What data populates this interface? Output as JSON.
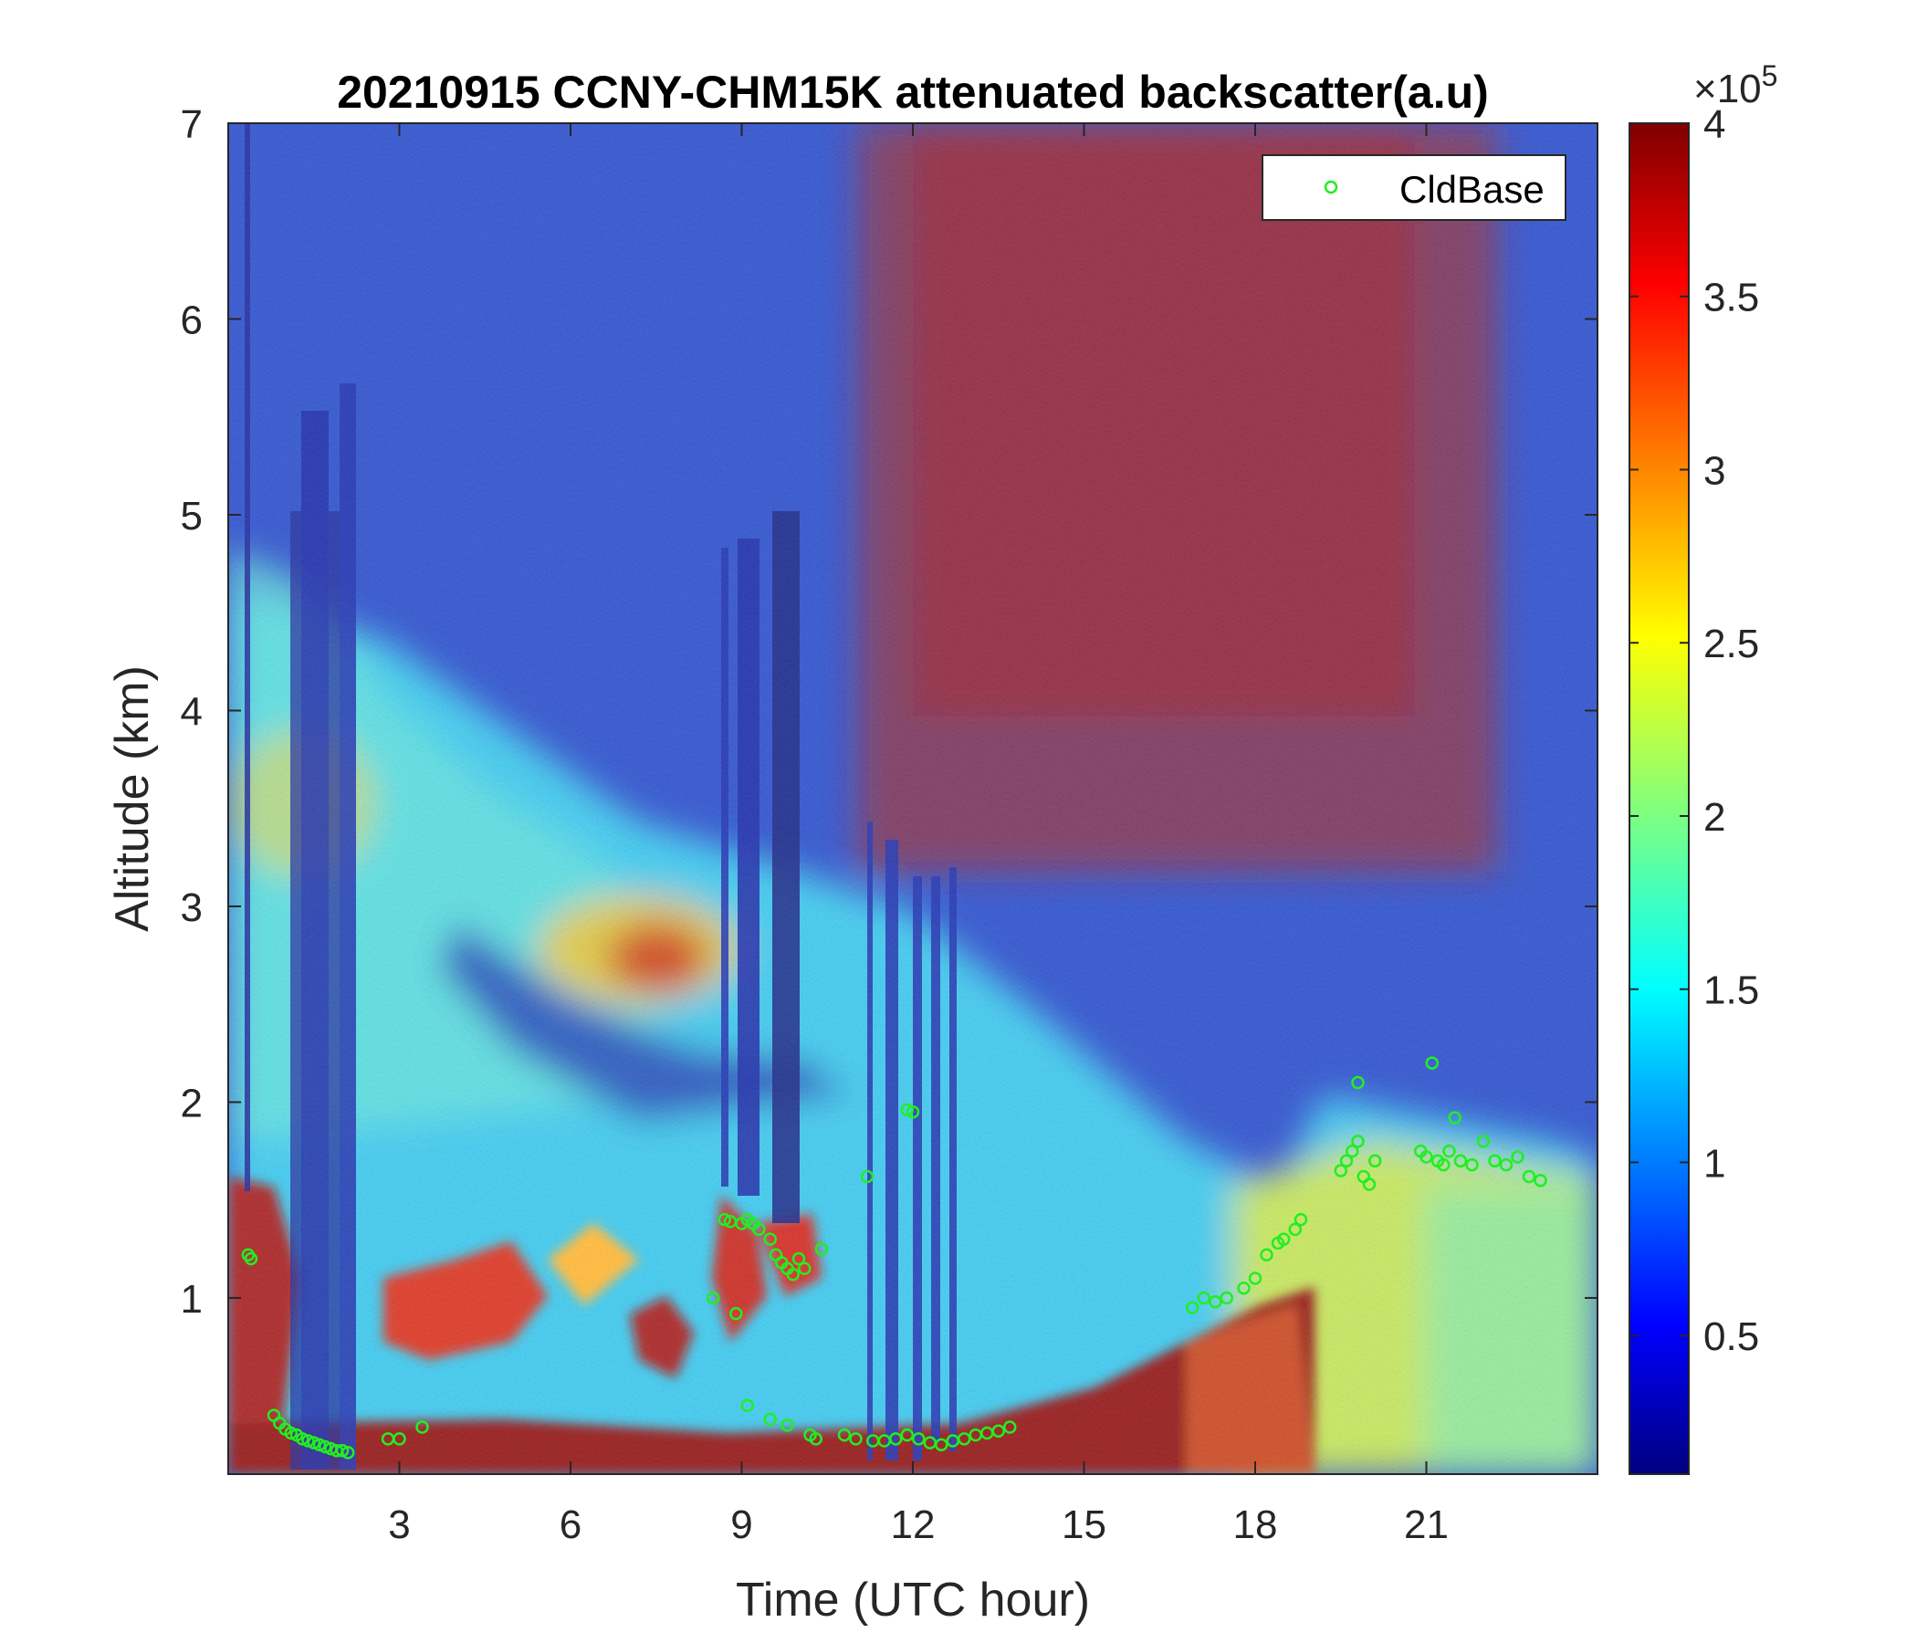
{
  "chart_data": {
    "type": "heatmap",
    "title": "20210915 CCNY-CHM15K attenuated backscatter(a.u)",
    "xlabel": "Time (UTC hour)",
    "ylabel": "Altitude (km)",
    "xlim": [
      0,
      24
    ],
    "ylim": [
      0.1,
      7
    ],
    "x_ticks": [
      "3",
      "6",
      "9",
      "12",
      "15",
      "18",
      "21"
    ],
    "x_tick_values": [
      3,
      6,
      9,
      12,
      15,
      18,
      21
    ],
    "y_ticks": [
      "1",
      "2",
      "3",
      "4",
      "5",
      "6",
      "7"
    ],
    "y_tick_values": [
      1,
      2,
      3,
      4,
      5,
      6,
      7
    ],
    "colorbar": {
      "colormap": "jet",
      "range": [
        0.1,
        4
      ],
      "ticks": [
        "0.5",
        "1",
        "1.5",
        "2",
        "2.5",
        "3",
        "3.5",
        "4"
      ],
      "tick_values": [
        0.5,
        1,
        1.5,
        2,
        2.5,
        3,
        3.5,
        4
      ],
      "exponent_label": "×10",
      "exponent_power": "5"
    },
    "legend": {
      "position": "top-right",
      "entries": [
        "CldBase"
      ]
    },
    "series": [
      {
        "name": "CldBase",
        "marker": "circle-open",
        "color": "#22ee22",
        "points": [
          [
            0.35,
            1.22
          ],
          [
            0.4,
            1.2
          ],
          [
            0.8,
            0.4
          ],
          [
            0.9,
            0.36
          ],
          [
            1.0,
            0.33
          ],
          [
            1.1,
            0.31
          ],
          [
            1.2,
            0.3
          ],
          [
            1.3,
            0.28
          ],
          [
            1.4,
            0.27
          ],
          [
            1.5,
            0.26
          ],
          [
            1.6,
            0.25
          ],
          [
            1.7,
            0.24
          ],
          [
            1.8,
            0.23
          ],
          [
            1.9,
            0.22
          ],
          [
            2.0,
            0.22
          ],
          [
            2.1,
            0.21
          ],
          [
            2.8,
            0.28
          ],
          [
            3.0,
            0.28
          ],
          [
            3.4,
            0.34
          ],
          [
            8.5,
            1.0
          ],
          [
            8.7,
            1.4
          ],
          [
            8.8,
            1.39
          ],
          [
            8.9,
            0.92
          ],
          [
            9.0,
            1.38
          ],
          [
            9.1,
            1.4
          ],
          [
            9.2,
            1.38
          ],
          [
            9.3,
            1.35
          ],
          [
            9.5,
            1.3
          ],
          [
            9.6,
            1.22
          ],
          [
            9.7,
            1.18
          ],
          [
            9.8,
            1.15
          ],
          [
            9.9,
            1.12
          ],
          [
            10.0,
            1.2
          ],
          [
            10.1,
            1.15
          ],
          [
            10.4,
            1.25
          ],
          [
            9.1,
            0.45
          ],
          [
            9.5,
            0.38
          ],
          [
            9.8,
            0.35
          ],
          [
            10.2,
            0.3
          ],
          [
            10.3,
            0.28
          ],
          [
            10.8,
            0.3
          ],
          [
            11.0,
            0.28
          ],
          [
            11.2,
            1.62
          ],
          [
            11.3,
            0.27
          ],
          [
            11.5,
            0.27
          ],
          [
            11.7,
            0.28
          ],
          [
            11.9,
            1.96
          ],
          [
            12.0,
            1.95
          ],
          [
            11.9,
            0.3
          ],
          [
            12.1,
            0.28
          ],
          [
            12.3,
            0.26
          ],
          [
            12.5,
            0.25
          ],
          [
            12.7,
            0.27
          ],
          [
            12.9,
            0.28
          ],
          [
            13.1,
            0.3
          ],
          [
            13.3,
            0.31
          ],
          [
            13.5,
            0.32
          ],
          [
            13.7,
            0.34
          ],
          [
            16.9,
            0.95
          ],
          [
            17.1,
            1.0
          ],
          [
            17.3,
            0.98
          ],
          [
            17.5,
            1.0
          ],
          [
            17.8,
            1.05
          ],
          [
            18.0,
            1.1
          ],
          [
            18.2,
            1.22
          ],
          [
            18.4,
            1.28
          ],
          [
            18.5,
            1.3
          ],
          [
            18.7,
            1.35
          ],
          [
            18.8,
            1.4
          ],
          [
            19.5,
            1.65
          ],
          [
            19.6,
            1.7
          ],
          [
            19.7,
            1.75
          ],
          [
            19.8,
            1.8
          ],
          [
            19.8,
            2.1
          ],
          [
            19.9,
            1.62
          ],
          [
            20.0,
            1.58
          ],
          [
            20.1,
            1.7
          ],
          [
            20.9,
            1.75
          ],
          [
            21.0,
            1.72
          ],
          [
            21.1,
            2.2
          ],
          [
            21.2,
            1.7
          ],
          [
            21.3,
            1.68
          ],
          [
            21.4,
            1.75
          ],
          [
            21.5,
            1.92
          ],
          [
            21.6,
            1.7
          ],
          [
            21.8,
            1.68
          ],
          [
            22.0,
            1.8
          ],
          [
            22.2,
            1.7
          ],
          [
            22.4,
            1.68
          ],
          [
            22.6,
            1.72
          ],
          [
            22.8,
            1.62
          ],
          [
            23.0,
            1.6
          ]
        ]
      }
    ]
  },
  "colors": {
    "background": "#ffffff",
    "axis": "#262626",
    "cloud_base_marker": "#22ee22"
  }
}
